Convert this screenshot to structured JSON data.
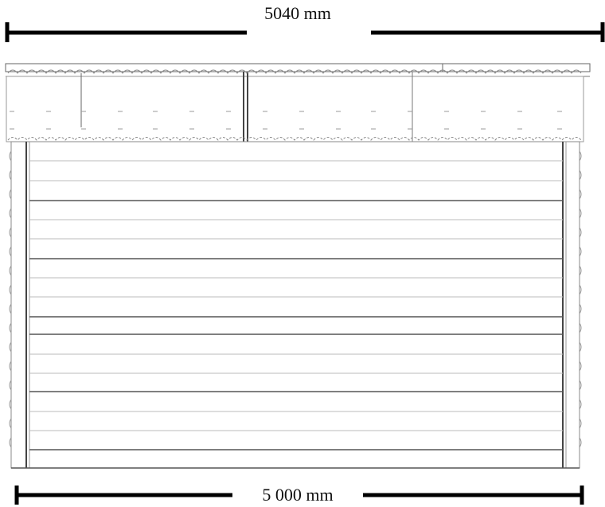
{
  "drawing": {
    "view": "Side elevation of log cabin",
    "top_dimension": {
      "label": "5040 mm",
      "value_mm": 5040
    },
    "bottom_dimension": {
      "label": "5 000 mm",
      "value_mm": 5000
    }
  }
}
